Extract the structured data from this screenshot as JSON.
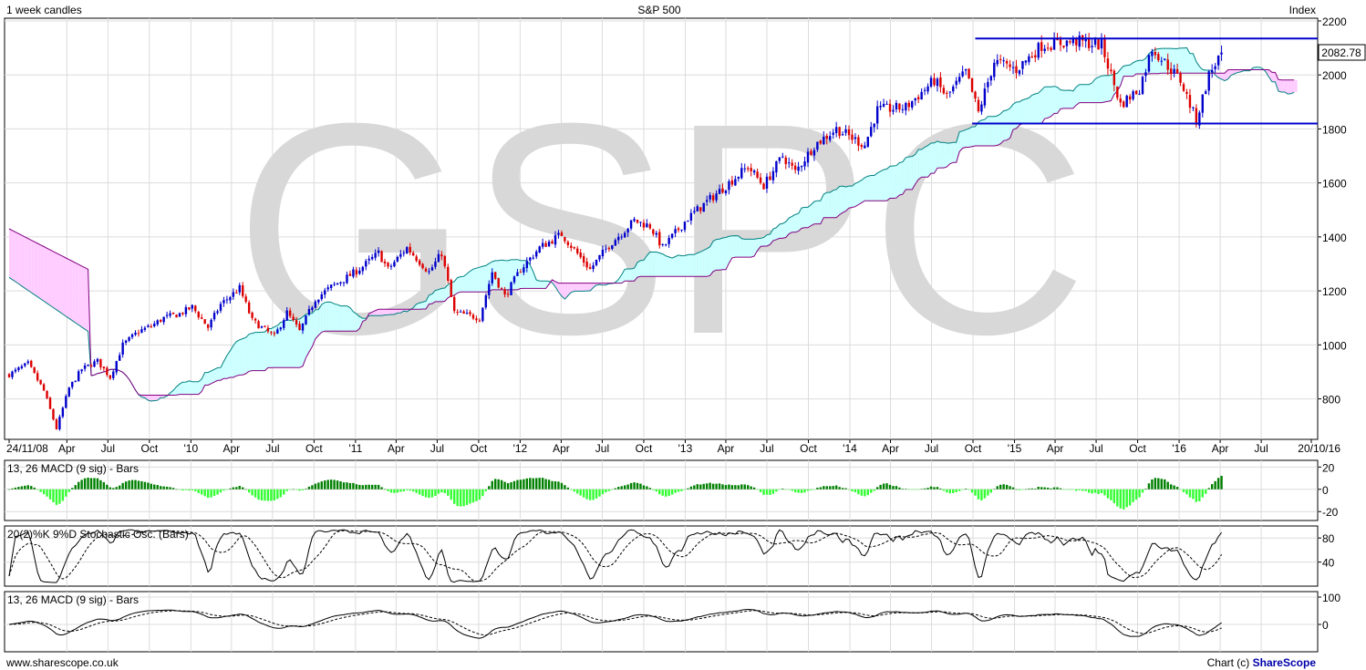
{
  "header": {
    "left": "1 week candles",
    "center": "S&P 500",
    "right": "Index"
  },
  "watermark": "GSPC",
  "footer": {
    "left": "www.sharescope.co.uk",
    "right_prefix": "Chart (c) ",
    "right_brand": "ShareScope"
  },
  "price_panel": {
    "last_price": "2082.78",
    "y_ticks": [
      "2200",
      "2000",
      "1800",
      "1600",
      "1400",
      "1200",
      "1000",
      "800"
    ],
    "x_ticks": [
      "24/11/08",
      "Apr",
      "Jul",
      "Oct",
      "'10",
      "Apr",
      "Jul",
      "Oct",
      "'11",
      "Apr",
      "Jul",
      "Oct",
      "'12",
      "Apr",
      "Jul",
      "Oct",
      "'13",
      "Apr",
      "Jul",
      "Oct",
      "'14",
      "Apr",
      "Jul",
      "Oct",
      "'15",
      "Apr",
      "Jul",
      "Oct",
      "'16",
      "Apr",
      "Jul",
      "20/10/16"
    ]
  },
  "macd_panel": {
    "title": "13, 26 MACD (9 sig) - Bars",
    "y_ticks": [
      "20",
      "0",
      "-20"
    ]
  },
  "stoch_panel": {
    "title": "20(2)%K 9%D Stochastic Osc. (Bars)",
    "y_ticks": [
      "80",
      "40"
    ]
  },
  "macd_line_panel": {
    "title": "13, 26 MACD (9 sig) - Bars",
    "y_ticks": [
      "100",
      "0"
    ]
  },
  "colors": {
    "up_candle": "#0000cc",
    "down_candle": "#dd0000",
    "cloud_bull": "#ccffff",
    "cloud_bear": "#ffccff",
    "macd_dark": "#008000",
    "macd_light": "#33ff33",
    "trendline": "#0000cc",
    "watermark": "#d8d8d8"
  },
  "chart_data": [
    {
      "type": "line",
      "title": "S&P 500",
      "subtitle": "1 week candles",
      "ylabel": "Index",
      "ylim": [
        650,
        2210
      ],
      "x_range": [
        "24/11/08",
        "20/10/16"
      ],
      "last_value": 2082.78,
      "close_path": [
        [
          "2008-11-24",
          890
        ],
        [
          "2009-01-05",
          930
        ],
        [
          "2009-02-09",
          830
        ],
        [
          "2009-03-09",
          690
        ],
        [
          "2009-04-06",
          840
        ],
        [
          "2009-05-04",
          910
        ],
        [
          "2009-06-08",
          940
        ],
        [
          "2009-07-06",
          880
        ],
        [
          "2009-08-03",
          1000
        ],
        [
          "2009-09-07",
          1050
        ],
        [
          "2009-10-05",
          1070
        ],
        [
          "2009-11-02",
          1100
        ],
        [
          "2009-12-07",
          1115
        ],
        [
          "2010-01-04",
          1140
        ],
        [
          "2010-02-08",
          1065
        ],
        [
          "2010-03-08",
          1150
        ],
        [
          "2010-04-19",
          1210
        ],
        [
          "2010-05-17",
          1090
        ],
        [
          "2010-07-05",
          1030
        ],
        [
          "2010-08-02",
          1120
        ],
        [
          "2010-08-30",
          1050
        ],
        [
          "2010-10-04",
          1170
        ],
        [
          "2010-11-08",
          1215
        ],
        [
          "2010-12-13",
          1250
        ],
        [
          "2011-01-17",
          1290
        ],
        [
          "2011-02-21",
          1340
        ],
        [
          "2011-03-14",
          1280
        ],
        [
          "2011-04-25",
          1360
        ],
        [
          "2011-06-13",
          1270
        ],
        [
          "2011-07-11",
          1340
        ],
        [
          "2011-08-08",
          1120
        ],
        [
          "2011-10-03",
          1100
        ],
        [
          "2011-10-31",
          1270
        ],
        [
          "2011-11-28",
          1180
        ],
        [
          "2012-01-02",
          1280
        ],
        [
          "2012-02-13",
          1360
        ],
        [
          "2012-04-02",
          1410
        ],
        [
          "2012-06-04",
          1280
        ],
        [
          "2012-07-16",
          1370
        ],
        [
          "2012-09-10",
          1460
        ],
        [
          "2012-10-15",
          1440
        ],
        [
          "2012-11-12",
          1360
        ],
        [
          "2013-01-07",
          1470
        ],
        [
          "2013-03-04",
          1550
        ],
        [
          "2013-05-20",
          1660
        ],
        [
          "2013-06-24",
          1590
        ],
        [
          "2013-08-05",
          1700
        ],
        [
          "2013-09-02",
          1640
        ],
        [
          "2013-10-14",
          1740
        ],
        [
          "2013-12-02",
          1800
        ],
        [
          "2014-02-03",
          1740
        ],
        [
          "2014-03-03",
          1870
        ],
        [
          "2014-05-05",
          1880
        ],
        [
          "2014-07-07",
          1980
        ],
        [
          "2014-08-04",
          1920
        ],
        [
          "2014-09-15",
          2010
        ],
        [
          "2014-10-13",
          1860
        ],
        [
          "2014-11-17",
          2050
        ],
        [
          "2015-01-05",
          2020
        ],
        [
          "2015-03-02",
          2110
        ],
        [
          "2015-05-18",
          2125
        ],
        [
          "2015-07-13",
          2110
        ],
        [
          "2015-08-24",
          1890
        ],
        [
          "2015-10-05",
          1950
        ],
        [
          "2015-11-02",
          2100
        ],
        [
          "2016-01-04",
          1980
        ],
        [
          "2016-02-08",
          1830
        ],
        [
          "2016-03-07",
          2000
        ],
        [
          "2016-04-04",
          2082.78
        ]
      ],
      "channel": {
        "upper": 2135,
        "lower": 1820
      }
    },
    {
      "type": "bar",
      "title": "13, 26 MACD (9 sig) - Bars",
      "ylim": [
        -28,
        26
      ]
    },
    {
      "type": "line",
      "title": "20(2)%K 9%D Stochastic Osc. (Bars)",
      "ylim": [
        0,
        100
      ]
    },
    {
      "type": "line",
      "title": "13, 26 MACD (9 sig) - Bars",
      "ylim": [
        -100,
        120
      ]
    }
  ]
}
